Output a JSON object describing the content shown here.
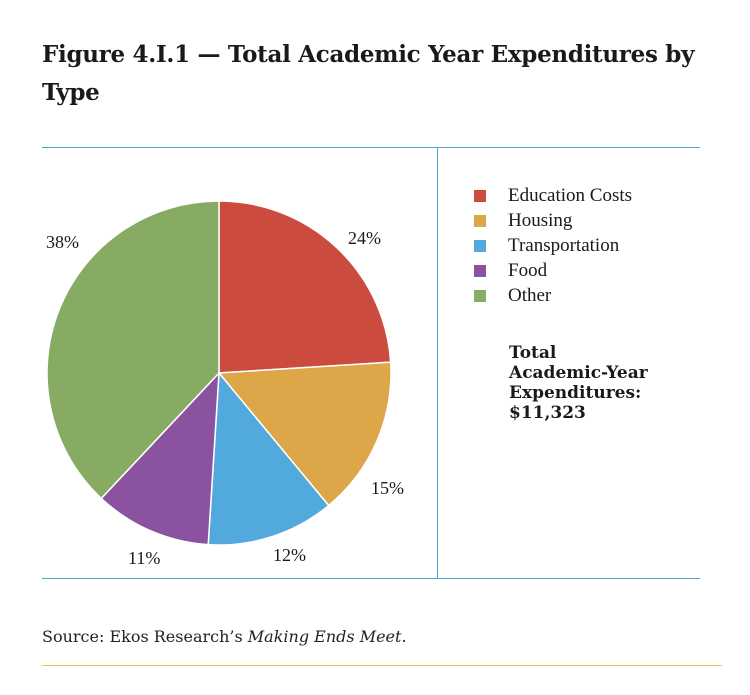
{
  "chart_data": {
    "type": "pie",
    "title": "Figure 4.I.1 — Total Academic Year Expenditures by Type",
    "categories": [
      "Education Costs",
      "Housing",
      "Transportation",
      "Food",
      "Other"
    ],
    "values": [
      24,
      15,
      12,
      11,
      38
    ],
    "value_labels": [
      "24%",
      "15%",
      "12%",
      "11%",
      "38%"
    ],
    "colors": [
      "#cb4b3e",
      "#dca649",
      "#52a9dd",
      "#8b52a0",
      "#88ab63"
    ],
    "legend_position": "right"
  },
  "total": {
    "line1": "Total",
    "line2": "Academic-Year",
    "line3": "Expenditures:",
    "line4": "$11,323"
  },
  "source": {
    "prefix": "Source: Ekos Research’s ",
    "italic": "Making Ends Meet."
  }
}
